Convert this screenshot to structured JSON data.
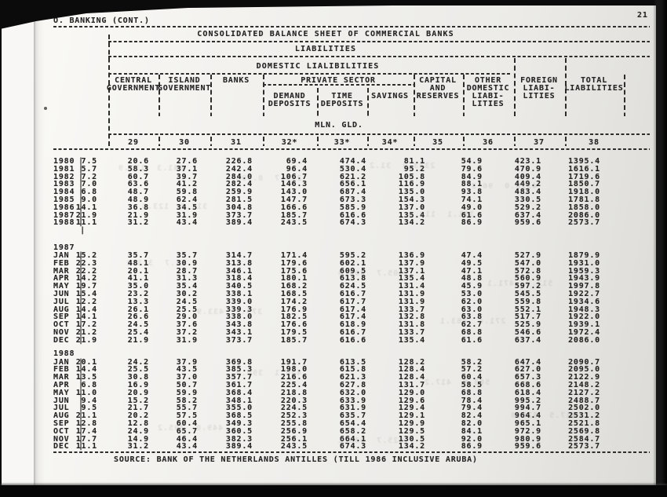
{
  "page": {
    "section": "O. BANKING (CONT.)",
    "page_number": "21",
    "source": "SOURCE: BANK OF THE NETHERLANDS ANTILLES (TILL 1986 INCLUSIVE ARUBA)"
  },
  "colors": {
    "ink": "#262626",
    "paper": "#efeeeb",
    "background": "#0a0a0a"
  },
  "table": {
    "title": "CONSOLIDATED BALANCE SHEET OF COMMERCIAL BANKS",
    "group1": "LIABILITIES",
    "group2": "DOMESTIC LIALIBILITIES",
    "unit": "MLN. GLD.",
    "private_sector_label": "PRIVATE SECTOR",
    "columns": {
      "central": [
        "CENTRAL",
        "GOVERNMENT"
      ],
      "island": [
        "ISLAND",
        "GOVERNMENT"
      ],
      "banks": [
        "BANKS"
      ],
      "demand": [
        "DEMAND",
        "DEPOSITS"
      ],
      "time": [
        "TIME",
        "DEPOSITS"
      ],
      "savings": [
        "SAVINGS"
      ],
      "capital": [
        "CAPITAL",
        "AND",
        "RESERVES"
      ],
      "other": [
        "OTHER",
        "DOMESTIC",
        "LIABI-",
        "LITIES"
      ],
      "foreign": [
        "FOREIGN",
        "LIABI-",
        "LITIES"
      ],
      "total": [
        "TOTAL",
        "LIABILITIES"
      ]
    },
    "column_numbers": [
      "29",
      "30",
      "31",
      "32*",
      "33*",
      "34*",
      "35",
      "36",
      "37",
      "38"
    ],
    "sections": [
      {
        "label": "",
        "rows": [
          [
            "1980",
            "7.5",
            "20.6",
            "27.6",
            "226.8",
            "69.4",
            "474.4",
            "81.1",
            "54.9",
            "423.1",
            "1395.4"
          ],
          [
            "1981",
            "5.7",
            "58.3",
            "37.1",
            "242.4",
            "96.4",
            "530.4",
            "95.2",
            "79.6",
            "470.9",
            "1616.1"
          ],
          [
            "1982",
            "7.2",
            "60.7",
            "39.7",
            "284.0",
            "106.7",
            "621.2",
            "105.8",
            "84.9",
            "409.4",
            "1719.6"
          ],
          [
            "1983",
            "7.0",
            "63.6",
            "41.2",
            "282.4",
            "146.3",
            "656.1",
            "116.9",
            "88.1",
            "449.2",
            "1850.7"
          ],
          [
            "1984",
            "6.8",
            "48.7",
            "59.8",
            "259.9",
            "143.0",
            "687.4",
            "135.0",
            "93.8",
            "483.4",
            "1918.0"
          ],
          [
            "1985",
            "9.0",
            "48.9",
            "62.4",
            "281.5",
            "147.7",
            "673.3",
            "154.3",
            "74.1",
            "330.5",
            "1781.8"
          ],
          [
            "1986",
            "14.1",
            "36.8",
            "34.5",
            "304.8",
            "166.6",
            "585.9",
            "137.0",
            "49.0",
            "529.2",
            "1858.0"
          ],
          [
            "1987",
            "21.9",
            "21.9",
            "31.9",
            "373.7",
            "185.7",
            "616.6",
            "135.4",
            "61.6",
            "637.4",
            "2086.0"
          ],
          [
            "1988",
            "11.1",
            "31.2",
            "43.4",
            "389.4",
            "243.5",
            "674.3",
            "134.2",
            "86.9",
            "959.6",
            "2573.7"
          ]
        ]
      },
      {
        "label": "1987",
        "rows": [
          [
            "JAN",
            "15.2",
            "35.7",
            "35.7",
            "314.7",
            "171.4",
            "595.2",
            "136.9",
            "47.4",
            "527.9",
            "1879.9"
          ],
          [
            "FEB",
            "22.3",
            "48.1",
            "30.9",
            "313.8",
            "179.6",
            "602.1",
            "137.9",
            "49.5",
            "547.0",
            "1931.0"
          ],
          [
            "MAR",
            "22.2",
            "20.1",
            "28.7",
            "346.1",
            "175.6",
            "609.5",
            "137.1",
            "47.1",
            "572.8",
            "1959.3"
          ],
          [
            "APR",
            "14.2",
            "41.1",
            "31.3",
            "318.4",
            "180.1",
            "613.8",
            "135.4",
            "48.8",
            "560.9",
            "1943.9"
          ],
          [
            "MAY",
            "19.7",
            "35.0",
            "35.4",
            "340.5",
            "168.2",
            "624.5",
            "131.4",
            "45.9",
            "597.2",
            "1997.8"
          ],
          [
            "JUN",
            "15.4",
            "23.2",
            "30.2",
            "338.1",
            "168.5",
            "616.7",
            "131.9",
            "53.0",
            "545.5",
            "1922.7"
          ],
          [
            "JUL",
            "12.2",
            "13.3",
            "24.5",
            "339.0",
            "174.2",
            "617.7",
            "131.9",
            "62.0",
            "559.8",
            "1934.6"
          ],
          [
            "AUG",
            "14.4",
            "26.1",
            "25.5",
            "339.3",
            "176.9",
            "617.4",
            "133.7",
            "63.0",
            "552.1",
            "1948.3"
          ],
          [
            "SEP",
            "14.1",
            "26.6",
            "29.0",
            "338.0",
            "182.5",
            "617.4",
            "132.8",
            "63.8",
            "517.7",
            "1922.0"
          ],
          [
            "OCT",
            "17.2",
            "24.5",
            "37.6",
            "343.8",
            "176.6",
            "618.9",
            "131.8",
            "62.7",
            "525.9",
            "1939.1"
          ],
          [
            "NOV",
            "21.2",
            "25.4",
            "37.2",
            "343.1",
            "179.5",
            "616.7",
            "133.7",
            "68.8",
            "546.6",
            "1972.4"
          ],
          [
            "DEC",
            "21.9",
            "21.9",
            "31.9",
            "373.7",
            "185.7",
            "616.6",
            "135.4",
            "61.6",
            "637.4",
            "2086.0"
          ]
        ]
      },
      {
        "label": "1988",
        "rows": [
          [
            "JAN",
            "20.1",
            "24.2",
            "37.9",
            "369.8",
            "191.7",
            "613.5",
            "128.2",
            "58.2",
            "647.4",
            "2090.7"
          ],
          [
            "FEB",
            "14.4",
            "25.5",
            "43.5",
            "385.3",
            "198.0",
            "615.8",
            "128.4",
            "57.2",
            "627.0",
            "2095.0"
          ],
          [
            "MAR",
            "13.5",
            "30.8",
            "37.0",
            "357.7",
            "216.6",
            "621.3",
            "128.4",
            "60.4",
            "657.3",
            "2122.9"
          ],
          [
            "APR",
            "6.8",
            "16.9",
            "50.7",
            "361.7",
            "225.4",
            "627.8",
            "131.7",
            "58.5",
            "668.6",
            "2148.2"
          ],
          [
            "MAY",
            "11.0",
            "20.9",
            "59.9",
            "368.4",
            "218.8",
            "632.0",
            "129.0",
            "68.8",
            "618.4",
            "2127.2"
          ],
          [
            "JUN",
            "9.4",
            "15.2",
            "58.2",
            "348.1",
            "220.3",
            "633.9",
            "129.6",
            "78.4",
            "995.2",
            "2488.7"
          ],
          [
            "JUL",
            "9.5",
            "21.7",
            "55.7",
            "355.0",
            "224.5",
            "631.9",
            "129.4",
            "79.4",
            "994.7",
            "2502.0"
          ],
          [
            "AUG",
            "21.1",
            "20.2",
            "57.5",
            "368.5",
            "252.3",
            "635.7",
            "129.1",
            "82.4",
            "964.4",
            "2531.2"
          ],
          [
            "SEP",
            "12.8",
            "12.8",
            "60.4",
            "349.3",
            "255.8",
            "654.4",
            "129.9",
            "82.0",
            "965.1",
            "2521.8"
          ],
          [
            "OCT",
            "17.4",
            "24.9",
            "65.7",
            "360.5",
            "256.9",
            "658.2",
            "129.5",
            "84.1",
            "972.9",
            "2569.8"
          ],
          [
            "NOV",
            "17.7",
            "14.9",
            "46.4",
            "382.3",
            "256.1",
            "664.1",
            "130.5",
            "92.0",
            "980.9",
            "2584.7"
          ],
          [
            "DEC",
            "11.1",
            "31.2",
            "43.4",
            "389.4",
            "243.5",
            "674.3",
            "134.2",
            "86.9",
            "959.6",
            "2573.7"
          ]
        ]
      }
    ]
  }
}
